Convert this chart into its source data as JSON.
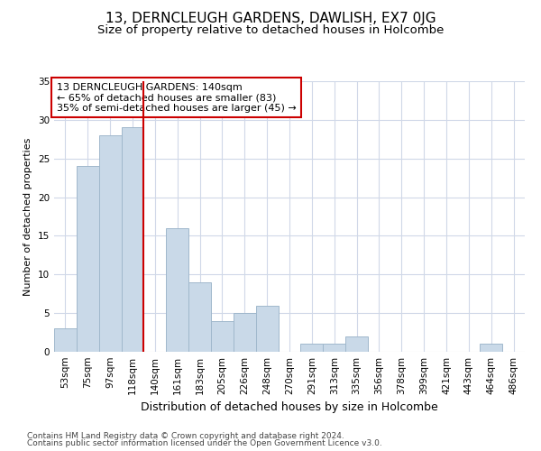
{
  "title": "13, DERNCLEUGH GARDENS, DAWLISH, EX7 0JG",
  "subtitle": "Size of property relative to detached houses in Holcombe",
  "xlabel": "Distribution of detached houses by size in Holcombe",
  "ylabel": "Number of detached properties",
  "bar_labels": [
    "53sqm",
    "75sqm",
    "97sqm",
    "118sqm",
    "140sqm",
    "161sqm",
    "183sqm",
    "205sqm",
    "226sqm",
    "248sqm",
    "270sqm",
    "291sqm",
    "313sqm",
    "335sqm",
    "356sqm",
    "378sqm",
    "399sqm",
    "421sqm",
    "443sqm",
    "464sqm",
    "486sqm"
  ],
  "bar_values": [
    3,
    24,
    28,
    29,
    0,
    16,
    9,
    4,
    5,
    6,
    0,
    1,
    1,
    2,
    0,
    0,
    0,
    0,
    0,
    1,
    0
  ],
  "bar_color": "#c9d9e8",
  "bar_edge_color": "#a0b8cc",
  "vline_color": "#cc0000",
  "annotation_text": "13 DERNCLEUGH GARDENS: 140sqm\n← 65% of detached houses are smaller (83)\n35% of semi-detached houses are larger (45) →",
  "annotation_box_color": "white",
  "annotation_box_edge": "#cc0000",
  "ylim": [
    0,
    35
  ],
  "yticks": [
    0,
    5,
    10,
    15,
    20,
    25,
    30,
    35
  ],
  "grid_color": "#d0d8e8",
  "footer_line1": "Contains HM Land Registry data © Crown copyright and database right 2024.",
  "footer_line2": "Contains public sector information licensed under the Open Government Licence v3.0.",
  "title_fontsize": 11,
  "subtitle_fontsize": 9.5,
  "xlabel_fontsize": 9,
  "ylabel_fontsize": 8,
  "tick_fontsize": 7.5,
  "annotation_fontsize": 8,
  "footer_fontsize": 6.5
}
